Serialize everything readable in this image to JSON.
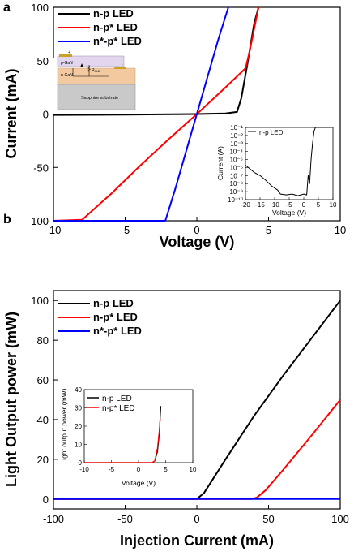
{
  "chart_data": [
    {
      "panel_label": "a",
      "type": "line",
      "xlabel": "Voltage (V)",
      "ylabel": "Current (mA)",
      "xlim": [
        -10,
        10
      ],
      "ylim": [
        -100,
        100
      ],
      "xticks": [
        "-10",
        "-5",
        "0",
        "5",
        "10"
      ],
      "yticks": [
        "100",
        "50",
        "0",
        "-50",
        "-100"
      ],
      "legend_position": "top-left",
      "series": [
        {
          "name": "n-p LED",
          "color": "#000000",
          "x": [
            -10,
            -5,
            0,
            2,
            2.8,
            3.1,
            3.5,
            4.0,
            4.3
          ],
          "y": [
            -0.8,
            -0.5,
            0,
            0.6,
            2,
            15,
            45,
            85,
            100
          ]
        },
        {
          "name": "n-p* LED",
          "color": "#ff0000",
          "x": [
            -10,
            -8.0,
            -6,
            -4,
            -2,
            0,
            2,
            3.4,
            3.7,
            4.0,
            4.3
          ],
          "y": [
            -100,
            -99,
            -75,
            -49,
            -24,
            0,
            25,
            43,
            60,
            80,
            100
          ]
        },
        {
          "name": "n*-p* LED",
          "color": "#0000ff",
          "x": [
            -10,
            -2.2,
            -1.5,
            0,
            1.5,
            2.2
          ],
          "y": [
            -100,
            -100,
            -70,
            0,
            70,
            100
          ]
        }
      ],
      "inset": {
        "type": "line",
        "xlabel": "Voltage (V)",
        "ylabel": "Current (A)",
        "xlim": [
          -20,
          10
        ],
        "ylim_log": [
          -10,
          -1
        ],
        "xticks": [
          "-20",
          "-15",
          "-10",
          "-5",
          "0",
          "5",
          "10"
        ],
        "yticks": [
          "10⁻¹",
          "10⁻²",
          "10⁻³",
          "10⁻⁴",
          "10⁻⁵",
          "10⁻⁶",
          "10⁻⁷",
          "10⁻⁸",
          "10⁻⁹",
          "10⁻¹⁰"
        ],
        "series": [
          {
            "name": "n-p LED",
            "color": "#000000",
            "x": [
              -20,
              -17,
              -15,
              -13,
              -11,
              -9,
              -8,
              -6,
              -4,
              -2,
              0,
              1,
              1.5,
              2,
              2.5,
              3,
              3.5,
              4,
              6,
              9
            ],
            "log_y": [
              -5.7,
              -6.6,
              -7.0,
              -7.6,
              -8.3,
              -8.8,
              -9.3,
              -9.4,
              -9.3,
              -9.5,
              -9.3,
              -9.4,
              -7.0,
              -8.0,
              -5.0,
              -3.0,
              -1.5,
              -1.0,
              -1.0,
              -1.0
            ]
          }
        ]
      }
    },
    {
      "panel_label": "b",
      "type": "line",
      "xlabel": "Injection Current (mA)",
      "ylabel": "Light Output power (mW)",
      "xlim": [
        -100,
        100
      ],
      "ylim": [
        -5,
        105
      ],
      "xticks": [
        "-100",
        "-50",
        "0",
        "50",
        "100"
      ],
      "yticks": [
        "100",
        "80",
        "60",
        "40",
        "20",
        "0"
      ],
      "legend_position": "top-left",
      "series": [
        {
          "name": "n-p LED",
          "color": "#000000",
          "x": [
            -100,
            0,
            5,
            20,
            40,
            60,
            80,
            100
          ],
          "y": [
            0,
            0,
            3,
            20,
            42,
            62,
            81,
            100
          ]
        },
        {
          "name": "n-p* LED",
          "color": "#ff0000",
          "x": [
            -100,
            38,
            42,
            48,
            60,
            80,
            100
          ],
          "y": [
            0,
            0,
            0.8,
            4.5,
            14.5,
            32,
            50
          ]
        },
        {
          "name": "n*-p* LED",
          "color": "#0000ff",
          "x": [
            -100,
            100
          ],
          "y": [
            0,
            0
          ]
        }
      ],
      "inset": {
        "type": "line",
        "xlabel": "Voltage (V)",
        "ylabel": "Light output power (mW)",
        "xlim": [
          -10,
          10
        ],
        "ylim": [
          0,
          40
        ],
        "xticks": [
          "-10",
          "-5",
          "0",
          "5",
          "10"
        ],
        "yticks": [
          "40",
          "30",
          "20",
          "10",
          "0"
        ],
        "series": [
          {
            "name": "n-p LED",
            "color": "#000000",
            "x": [
              -10,
              2.5,
              3.0,
              3.5,
              3.8,
              4.1
            ],
            "y": [
              0,
              0,
              1,
              6,
              15,
              31
            ]
          },
          {
            "name": "n-p* LED",
            "color": "#ff0000",
            "x": [
              -10,
              2.5,
              3.0,
              3.5,
              3.8,
              4.0
            ],
            "y": [
              0,
              0,
              1,
              8,
              17,
              24
            ]
          }
        ]
      }
    }
  ],
  "device_schematic": {
    "layers": [
      "p-GaN",
      "n-GaN",
      "Sapphire substrate"
    ],
    "resistor_label": "R",
    "resistor_sub": "ALD",
    "terminal_labels": [
      "+",
      "-"
    ]
  }
}
